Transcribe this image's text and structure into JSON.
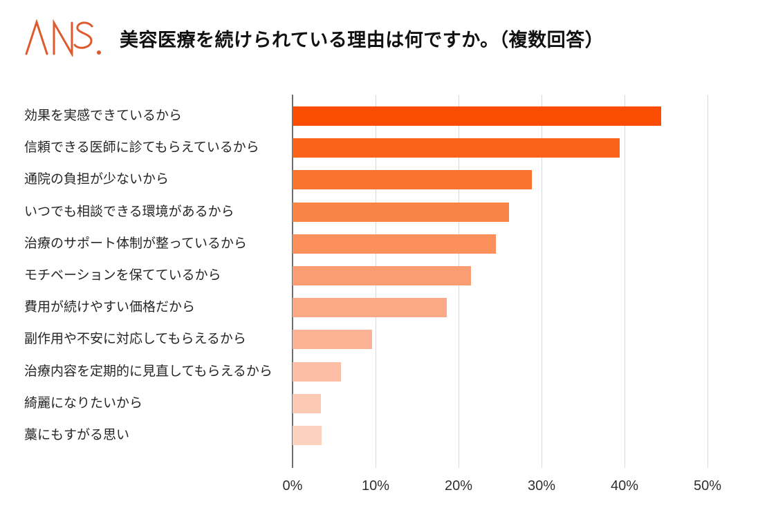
{
  "header": {
    "logo_text": "ANS.",
    "logo_color": "#de5a2c",
    "title": "美容医療を続けられている理由は何ですか。（複数回答）"
  },
  "chart_data": {
    "type": "bar",
    "orientation": "horizontal",
    "title": "美容医療を続けられている理由は何ですか。（複数回答）",
    "categories": [
      "効果を実感できているから",
      "信頼できる医師に診てもらえているから",
      "通院の負担が少ないから",
      "いつでも相談できる環境があるから",
      "治療のサポート体制が整っているから",
      "モチベーションを保てているから",
      "費用が続けやすい価格だから",
      "副作用や不安に対応してもらえるから",
      "治療内容を定期的に見直してもらえるから",
      "綺麗になりたいから",
      "藁にもすがる思い"
    ],
    "values": [
      44.4,
      39.4,
      28.8,
      26.1,
      24.5,
      21.5,
      18.6,
      9.6,
      5.8,
      3.4,
      3.5
    ],
    "unit": "%",
    "xlabel": "",
    "ylabel": "",
    "xlim": [
      0,
      50
    ],
    "x_ticks": [
      "0%",
      "10%",
      "20%",
      "30%",
      "40%",
      "50%"
    ],
    "grid": "vertical-only",
    "legend": "none",
    "bar_colors": [
      "#fb4d01",
      "#fa6119",
      "#fa742f",
      "#fa8346",
      "#fb905c",
      "#fb9d72",
      "#fba985",
      "#fcb295",
      "#fcbea5",
      "#fcc9b4",
      "#fcd2bf"
    ],
    "axis_line_color": "#6e6e6e",
    "gridline_color": "#d9d9d9"
  }
}
